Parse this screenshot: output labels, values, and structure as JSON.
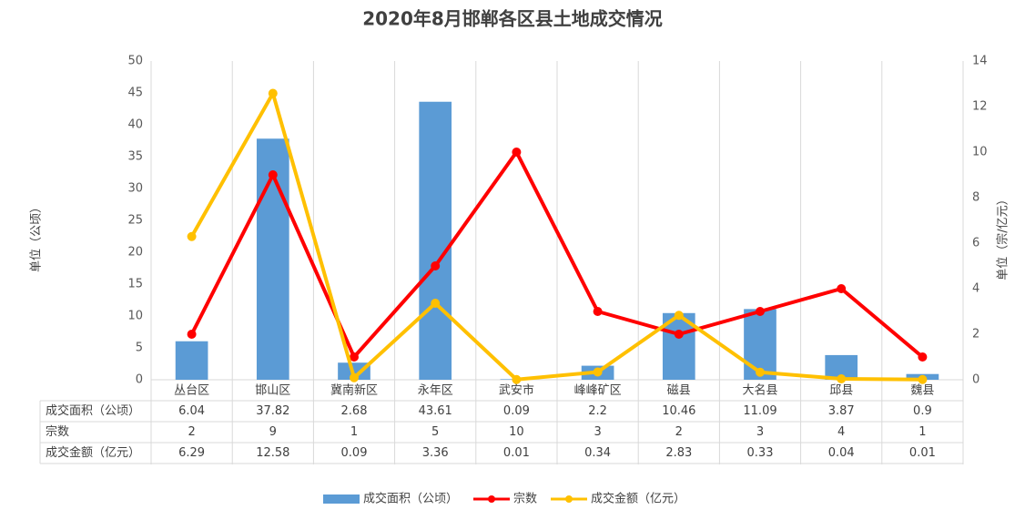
{
  "chart_data": {
    "type": "bar-line",
    "title": "2020年8月邯郸各区县土地成交情况",
    "ylabel": "单位（公顷）",
    "y2label": "单位（宗/亿元）",
    "categories": [
      "丛台区",
      "邯山区",
      "冀南新区",
      "永年区",
      "武安市",
      "峰峰矿区",
      "磁县",
      "大名县",
      "邱县",
      "魏县"
    ],
    "ylim": [
      0,
      50
    ],
    "yticks": [
      0,
      5,
      10,
      15,
      20,
      25,
      30,
      35,
      40,
      45,
      50
    ],
    "y2lim": [
      0,
      14
    ],
    "y2ticks": [
      0,
      2,
      4,
      6,
      8,
      10,
      12,
      14
    ],
    "series": [
      {
        "name": "成交面积（公顷）",
        "type": "bar",
        "color": "#5b9bd5",
        "values": [
          6.04,
          37.82,
          2.68,
          43.61,
          0.09,
          2.2,
          10.46,
          11.09,
          3.87,
          0.9
        ]
      },
      {
        "name": "宗数",
        "type": "line",
        "axis": "y2",
        "color": "#ff0000",
        "values": [
          2,
          9,
          1,
          5,
          10,
          3,
          2,
          3,
          4,
          1
        ]
      },
      {
        "name": "成交金额（亿元）",
        "type": "line",
        "axis": "y2",
        "color": "#ffc000",
        "values": [
          6.29,
          12.58,
          0.09,
          3.36,
          0.01,
          0.34,
          2.83,
          0.33,
          0.04,
          0.01
        ]
      }
    ]
  }
}
